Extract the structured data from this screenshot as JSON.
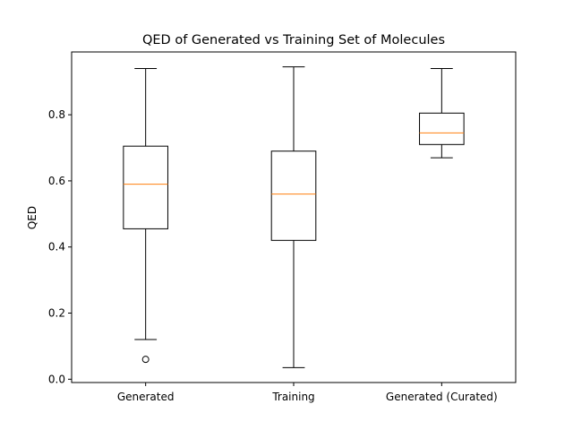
{
  "chart_data": {
    "type": "box",
    "title": "QED of Generated vs Training Set of Molecules",
    "xlabel": "",
    "ylabel": "QED",
    "ylim": [
      -0.01,
      0.99
    ],
    "yticks": [
      0.0,
      0.2,
      0.4,
      0.6,
      0.8
    ],
    "ytick_labels": [
      "0.0",
      "0.2",
      "0.4",
      "0.6",
      "0.8"
    ],
    "grid": false,
    "categories": [
      "Generated",
      "Training",
      "Generated (Curated)"
    ],
    "boxes": [
      {
        "category": "Generated",
        "whisker_low": 0.12,
        "q1": 0.455,
        "median": 0.59,
        "q3": 0.705,
        "whisker_high": 0.94,
        "outliers": [
          0.06
        ]
      },
      {
        "category": "Training",
        "whisker_low": 0.035,
        "q1": 0.42,
        "median": 0.56,
        "q3": 0.69,
        "whisker_high": 0.945,
        "outliers": []
      },
      {
        "category": "Generated (Curated)",
        "whisker_low": 0.67,
        "q1": 0.71,
        "median": 0.745,
        "q3": 0.805,
        "whisker_high": 0.94,
        "outliers": []
      }
    ],
    "colors": {
      "box": "#000000",
      "median": "#ff7f0e"
    }
  }
}
